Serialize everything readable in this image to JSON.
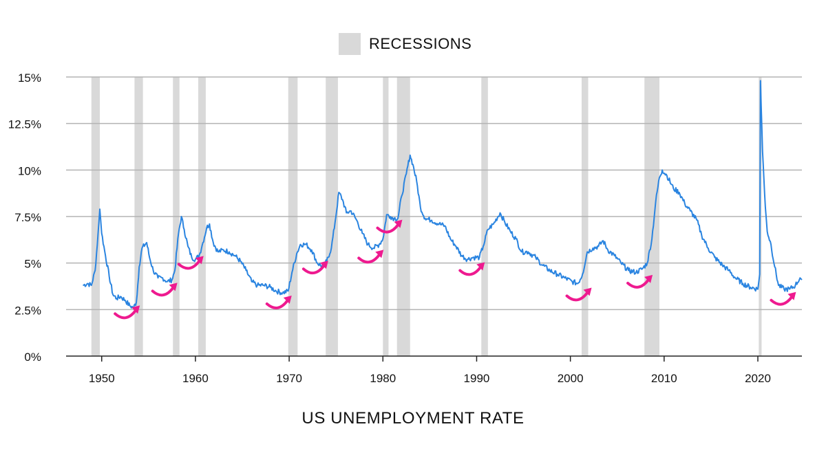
{
  "chart_data": {
    "type": "line",
    "title": "",
    "xlabel": "US UNEMPLOYMENT RATE",
    "ylabel": "",
    "xlim": [
      1946.2,
      2024.7
    ],
    "ylim": [
      0,
      15
    ],
    "x_ticks": [
      1950,
      1960,
      1970,
      1980,
      1990,
      2000,
      2010,
      2020
    ],
    "y_ticks": [
      {
        "value": 0,
        "label": "0%"
      },
      {
        "value": 2.5,
        "label": "2.5%"
      },
      {
        "value": 5,
        "label": "5%"
      },
      {
        "value": 7.5,
        "label": "7.5%"
      },
      {
        "value": 10,
        "label": "10%"
      },
      {
        "value": 12.5,
        "label": "12.5%"
      },
      {
        "value": 15,
        "label": "15%"
      }
    ],
    "grid": "horizontal",
    "legend": {
      "position": "top-center",
      "label": "RECESSIONS"
    },
    "recessions": [
      [
        1948.9,
        1949.8
      ],
      [
        1953.5,
        1954.4
      ],
      [
        1957.6,
        1958.3
      ],
      [
        1960.3,
        1961.1
      ],
      [
        1969.9,
        1970.9
      ],
      [
        1973.9,
        1975.2
      ],
      [
        1980.0,
        1980.6
      ],
      [
        1981.5,
        1982.9
      ],
      [
        1990.5,
        1991.2
      ],
      [
        2001.2,
        2001.9
      ],
      [
        2007.9,
        2009.5
      ],
      [
        2020.1,
        2020.4
      ]
    ],
    "series": [
      {
        "values": [
          [
            1948.0,
            3.8
          ],
          [
            1948.5,
            3.9
          ],
          [
            1948.9,
            3.8
          ],
          [
            1949.3,
            4.6
          ],
          [
            1949.6,
            6.5
          ],
          [
            1949.8,
            7.9
          ],
          [
            1950.0,
            6.6
          ],
          [
            1950.4,
            5.4
          ],
          [
            1950.8,
            4.3
          ],
          [
            1951.2,
            3.3
          ],
          [
            1951.6,
            3.1
          ],
          [
            1952.0,
            3.2
          ],
          [
            1952.5,
            3.0
          ],
          [
            1953.0,
            2.7
          ],
          [
            1953.4,
            2.6
          ],
          [
            1953.7,
            2.9
          ],
          [
            1954.0,
            4.8
          ],
          [
            1954.3,
            5.8
          ],
          [
            1954.8,
            6.1
          ],
          [
            1955.1,
            5.3
          ],
          [
            1955.5,
            4.6
          ],
          [
            1956.0,
            4.2
          ],
          [
            1956.5,
            4.2
          ],
          [
            1957.0,
            4.0
          ],
          [
            1957.5,
            4.1
          ],
          [
            1957.8,
            4.6
          ],
          [
            1958.2,
            6.6
          ],
          [
            1958.5,
            7.5
          ],
          [
            1958.8,
            6.8
          ],
          [
            1959.2,
            5.9
          ],
          [
            1959.6,
            5.3
          ],
          [
            1960.0,
            5.2
          ],
          [
            1960.4,
            5.4
          ],
          [
            1960.8,
            6.1
          ],
          [
            1961.2,
            6.9
          ],
          [
            1961.5,
            7.1
          ],
          [
            1961.9,
            6.1
          ],
          [
            1962.4,
            5.6
          ],
          [
            1963.0,
            5.7
          ],
          [
            1963.6,
            5.6
          ],
          [
            1964.2,
            5.4
          ],
          [
            1964.8,
            5.1
          ],
          [
            1965.4,
            4.6
          ],
          [
            1966.0,
            4.0
          ],
          [
            1966.6,
            3.8
          ],
          [
            1967.3,
            3.8
          ],
          [
            1968.0,
            3.7
          ],
          [
            1968.6,
            3.5
          ],
          [
            1969.3,
            3.4
          ],
          [
            1969.9,
            3.5
          ],
          [
            1970.3,
            4.5
          ],
          [
            1970.8,
            5.5
          ],
          [
            1971.2,
            6.0
          ],
          [
            1971.8,
            6.0
          ],
          [
            1972.4,
            5.7
          ],
          [
            1973.0,
            5.0
          ],
          [
            1973.6,
            4.8
          ],
          [
            1974.0,
            5.1
          ],
          [
            1974.5,
            5.8
          ],
          [
            1974.9,
            7.2
          ],
          [
            1975.3,
            8.8
          ],
          [
            1975.7,
            8.4
          ],
          [
            1976.1,
            7.7
          ],
          [
            1976.6,
            7.8
          ],
          [
            1977.2,
            7.3
          ],
          [
            1977.8,
            6.6
          ],
          [
            1978.4,
            6.0
          ],
          [
            1979.0,
            5.8
          ],
          [
            1979.6,
            6.0
          ],
          [
            1980.0,
            6.3
          ],
          [
            1980.4,
            7.6
          ],
          [
            1980.8,
            7.5
          ],
          [
            1981.2,
            7.4
          ],
          [
            1981.6,
            7.4
          ],
          [
            1982.0,
            8.6
          ],
          [
            1982.5,
            9.8
          ],
          [
            1982.9,
            10.8
          ],
          [
            1983.2,
            10.3
          ],
          [
            1983.6,
            9.4
          ],
          [
            1984.0,
            8.0
          ],
          [
            1984.5,
            7.4
          ],
          [
            1985.2,
            7.3
          ],
          [
            1986.0,
            7.1
          ],
          [
            1986.6,
            7.0
          ],
          [
            1987.2,
            6.3
          ],
          [
            1987.8,
            5.9
          ],
          [
            1988.4,
            5.4
          ],
          [
            1989.0,
            5.2
          ],
          [
            1989.6,
            5.3
          ],
          [
            1990.3,
            5.3
          ],
          [
            1990.7,
            5.9
          ],
          [
            1991.2,
            6.8
          ],
          [
            1991.8,
            7.1
          ],
          [
            1992.5,
            7.7
          ],
          [
            1993.0,
            7.2
          ],
          [
            1993.6,
            6.7
          ],
          [
            1994.2,
            6.3
          ],
          [
            1994.8,
            5.6
          ],
          [
            1995.5,
            5.6
          ],
          [
            1996.3,
            5.3
          ],
          [
            1997.0,
            4.9
          ],
          [
            1997.8,
            4.6
          ],
          [
            1998.6,
            4.4
          ],
          [
            1999.4,
            4.2
          ],
          [
            2000.2,
            4.0
          ],
          [
            2000.8,
            3.9
          ],
          [
            2001.3,
            4.4
          ],
          [
            2001.8,
            5.6
          ],
          [
            2002.4,
            5.8
          ],
          [
            2003.0,
            5.9
          ],
          [
            2003.5,
            6.2
          ],
          [
            2004.0,
            5.7
          ],
          [
            2004.7,
            5.4
          ],
          [
            2005.4,
            5.0
          ],
          [
            2006.2,
            4.6
          ],
          [
            2007.0,
            4.5
          ],
          [
            2007.7,
            4.7
          ],
          [
            2008.2,
            5.0
          ],
          [
            2008.7,
            6.3
          ],
          [
            2009.1,
            8.3
          ],
          [
            2009.5,
            9.6
          ],
          [
            2009.8,
            10.0
          ],
          [
            2010.3,
            9.7
          ],
          [
            2011.0,
            9.0
          ],
          [
            2011.6,
            8.8
          ],
          [
            2012.2,
            8.2
          ],
          [
            2012.8,
            7.8
          ],
          [
            2013.5,
            7.3
          ],
          [
            2014.0,
            6.5
          ],
          [
            2014.7,
            5.8
          ],
          [
            2015.4,
            5.3
          ],
          [
            2016.2,
            4.9
          ],
          [
            2016.9,
            4.6
          ],
          [
            2017.6,
            4.2
          ],
          [
            2018.4,
            3.9
          ],
          [
            2019.2,
            3.7
          ],
          [
            2020.0,
            3.6
          ],
          [
            2020.2,
            4.4
          ],
          [
            2020.28,
            14.8
          ],
          [
            2020.5,
            11.0
          ],
          [
            2020.8,
            8.0
          ],
          [
            2021.0,
            6.7
          ],
          [
            2021.4,
            6.0
          ],
          [
            2021.8,
            4.8
          ],
          [
            2022.2,
            3.8
          ],
          [
            2022.8,
            3.6
          ],
          [
            2023.4,
            3.6
          ],
          [
            2024.0,
            3.8
          ],
          [
            2024.5,
            4.2
          ],
          [
            2024.7,
            4.1
          ]
        ]
      }
    ],
    "annotations": [
      1952.6,
      1956.6,
      1959.4,
      1968.8,
      1972.7,
      1978.6,
      1980.6,
      1989.4,
      2000.8,
      2007.3,
      2022.6
    ],
    "colors": {
      "line": "#2a84e0",
      "recession": "#d9d9d9",
      "grid": "#b3b3b3",
      "arrow": "#ee1a8f"
    }
  }
}
